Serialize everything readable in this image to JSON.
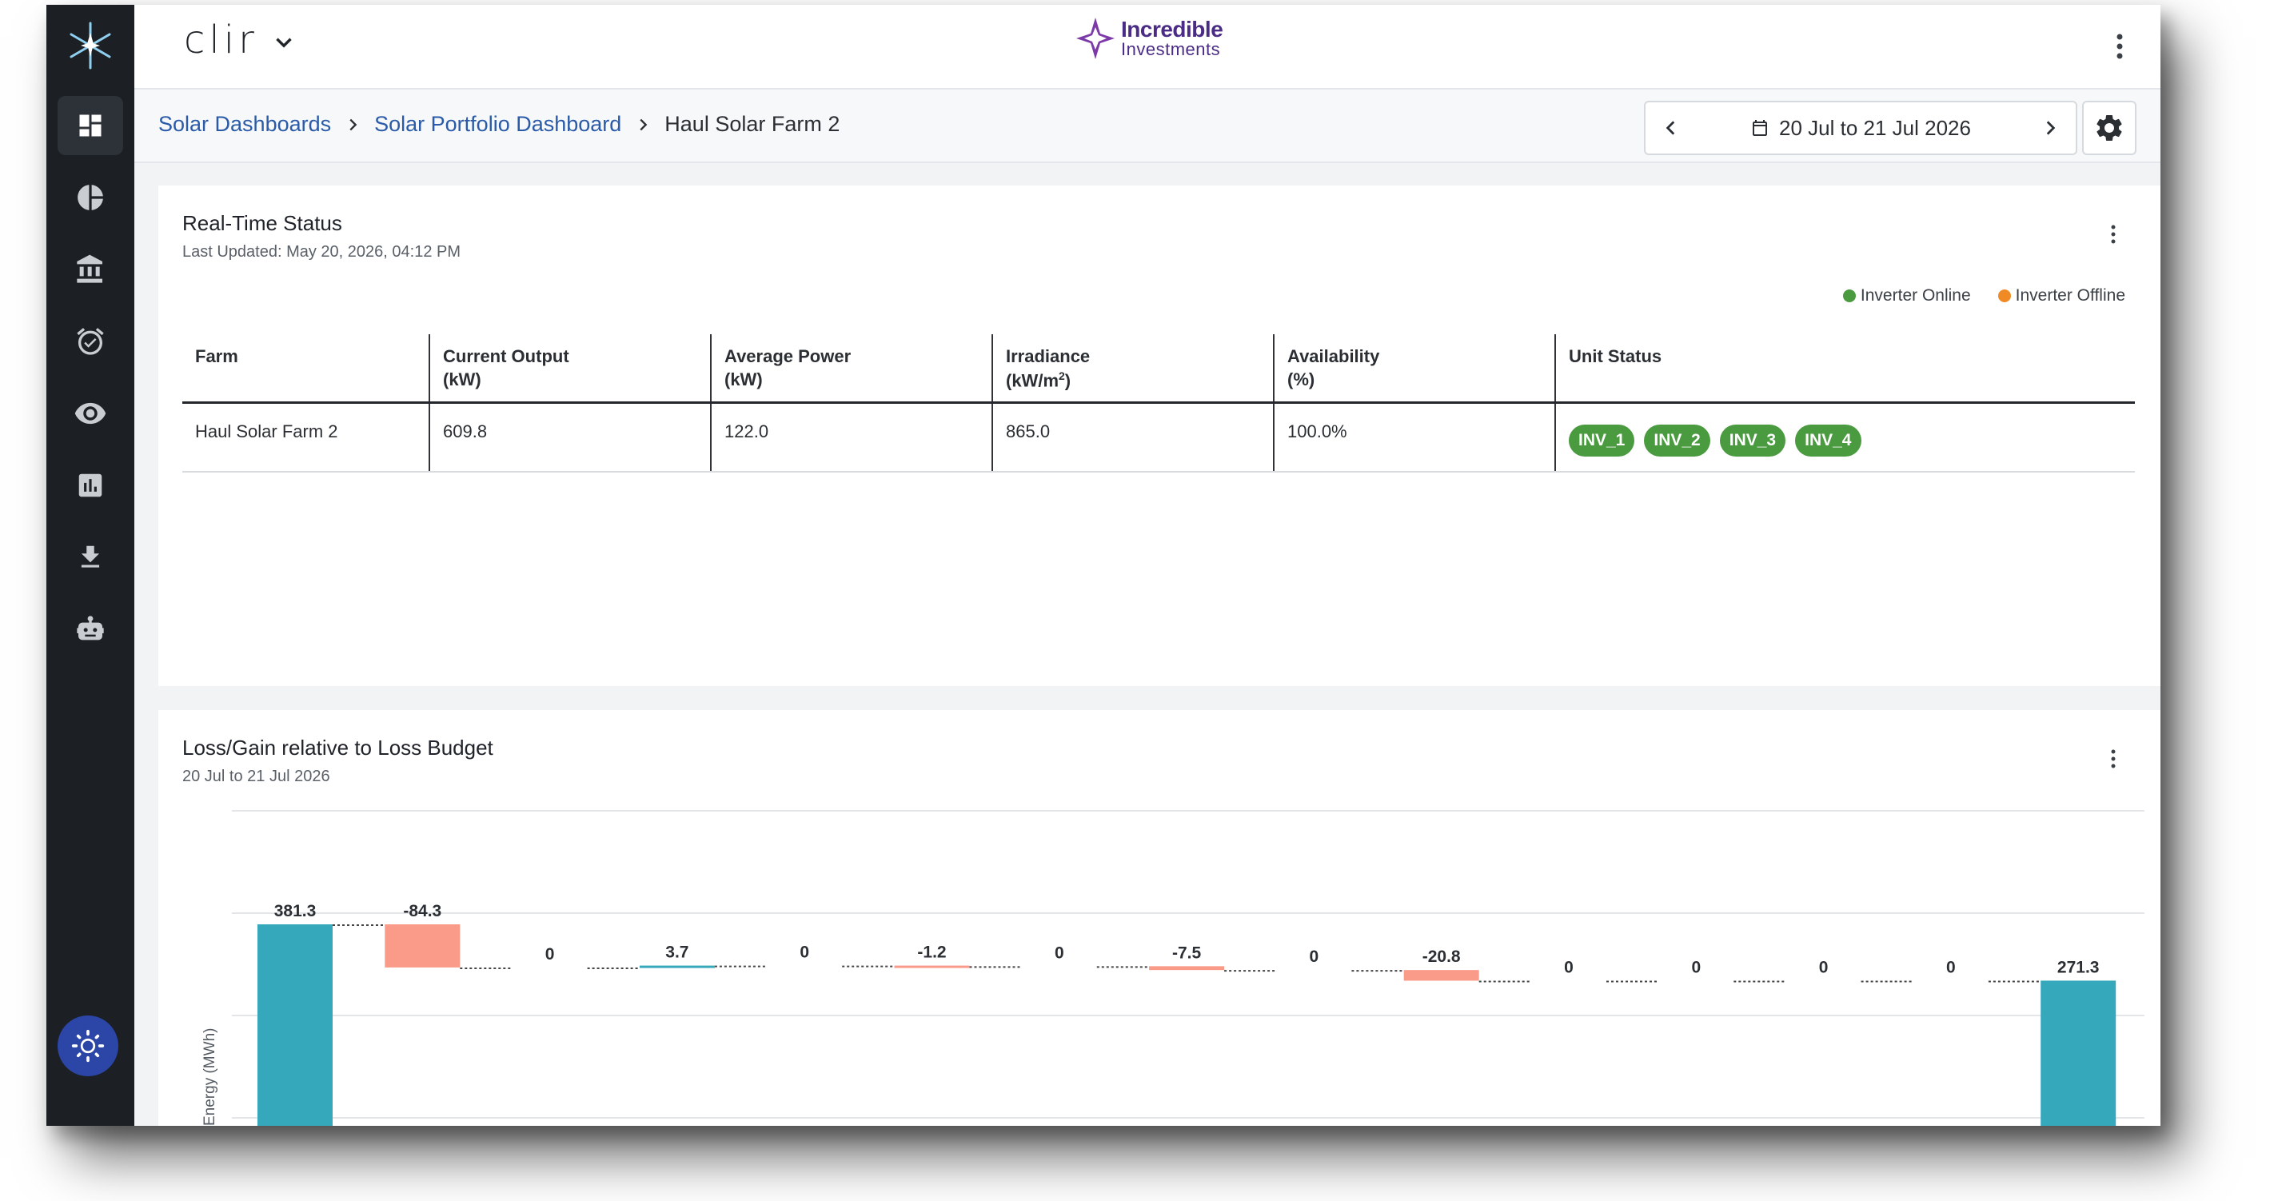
{
  "app": {
    "name": "clir"
  },
  "brand": {
    "line1": "Incredible",
    "line2": "Investments"
  },
  "breadcrumb": {
    "items": [
      "Solar Dashboards",
      "Solar Portfolio Dashboard"
    ],
    "current": "Haul Solar Farm 2"
  },
  "datepicker": {
    "range": "20 Jul to 21 Jul 2026"
  },
  "sidebar": {
    "icons": [
      "dashboard-icon",
      "pie-chart-icon",
      "bank-icon",
      "alarm-check-icon",
      "eye-icon",
      "bar-chart-icon",
      "download-icon",
      "robot-icon"
    ],
    "theme_icon": "sun-icon"
  },
  "realtime": {
    "title": "Real-Time Status",
    "updated": "Last Updated: May 20, 2026, 04:12 PM",
    "legend": [
      {
        "label": "Inverter Online",
        "color": "#4a9a3f"
      },
      {
        "label": "Inverter Offline",
        "color": "#f08a24"
      }
    ],
    "columns": {
      "farm": "Farm",
      "output_l1": "Current Output",
      "output_l2": "(kW)",
      "power_l1": "Average Power",
      "power_l2": "(kW)",
      "irr_l1": "Irradiance",
      "irr_l2": "(kW/m",
      "irr_sup": "2",
      "irr_l3": ")",
      "avail_l1": "Availability",
      "avail_l2": "(%)",
      "unit": "Unit Status"
    },
    "row": {
      "farm": "Haul Solar Farm 2",
      "output": "609.8",
      "power": "122.0",
      "irradiance": "865.0",
      "availability": "100.0%",
      "units": [
        "INV_1",
        "INV_2",
        "INV_3",
        "INV_4"
      ]
    }
  },
  "lossgain": {
    "title": "Loss/Gain relative to Loss Budget",
    "subtitle": "20 Jul to 21 Jul 2026"
  },
  "chart_data": {
    "type": "bar",
    "variant": "waterfall",
    "ylabel": "Energy (MWh)",
    "labels": [
      "381.3",
      "-84.3",
      "0",
      "3.7",
      "0",
      "-1.2",
      "0",
      "-7.5",
      "0",
      "-20.8",
      "0",
      "0",
      "0",
      "0",
      "271.3"
    ],
    "values": [
      381.3,
      -84.3,
      0,
      3.7,
      0,
      -1.2,
      0,
      -7.5,
      0,
      -20.8,
      0,
      0,
      0,
      0,
      271.3
    ],
    "kinds": [
      "total",
      "delta",
      "delta",
      "delta",
      "delta",
      "delta",
      "delta",
      "delta",
      "delta",
      "delta",
      "delta",
      "delta",
      "delta",
      "delta",
      "total"
    ],
    "colors": {
      "total": "#35a8bb",
      "gain": "#35a8bb",
      "loss": "#fa9a88",
      "connector": "#444444",
      "grid": "#e3e5e8"
    },
    "ylim_visible": [
      160,
      510
    ],
    "grid": true
  }
}
